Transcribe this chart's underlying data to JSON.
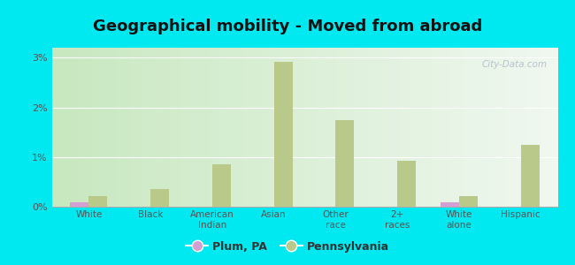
{
  "title": "Geographical mobility - Moved from abroad",
  "categories": [
    "White",
    "Black",
    "American\nIndian",
    "Asian",
    "Other\nrace",
    "2+\nraces",
    "White\nalone",
    "Hispanic"
  ],
  "plum_values": [
    0.09,
    0.0,
    0.0,
    0.0,
    0.0,
    0.0,
    0.09,
    0.0
  ],
  "penn_values": [
    0.22,
    0.35,
    0.85,
    2.92,
    1.75,
    0.92,
    0.22,
    1.25
  ],
  "plum_color": "#d4a0d4",
  "penn_color": "#b8c98a",
  "outer_bg": "#00e8f0",
  "plot_bg_left": "#c8e8c0",
  "plot_bg_right": "#f0f8f0",
  "ylim": [
    0,
    3.2
  ],
  "yticks": [
    0,
    1,
    2,
    3
  ],
  "ytick_labels": [
    "0%",
    "1%",
    "2%",
    "3%"
  ],
  "legend_labels": [
    "Plum, PA",
    "Pennsylvania"
  ],
  "title_fontsize": 13,
  "bar_width": 0.3
}
